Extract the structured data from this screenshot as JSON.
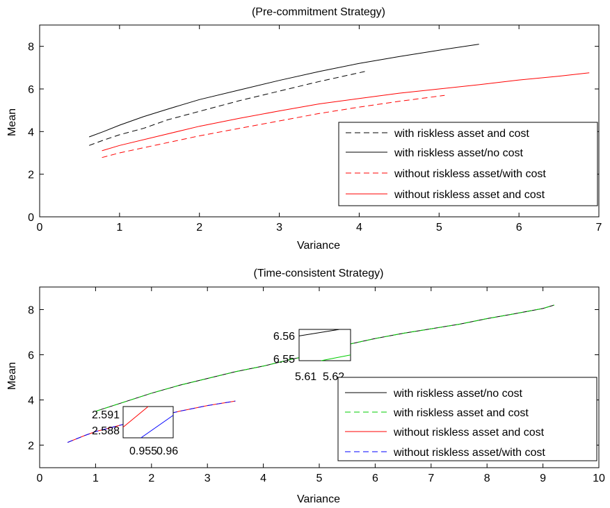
{
  "chart_data": [
    {
      "type": "line",
      "title": "(Pre-commitment Strategy)",
      "xlabel": "Variance",
      "ylabel": "Mean",
      "xlim": [
        0,
        7
      ],
      "ylim": [
        0,
        9
      ],
      "xticks": [
        0,
        1,
        2,
        3,
        4,
        5,
        6,
        7
      ],
      "yticks": [
        0,
        2,
        4,
        6,
        8
      ],
      "grid": false,
      "legend_position": "bottom-right",
      "series": [
        {
          "name": "with riskless asset and cost",
          "color": "#000000",
          "dash": "dashed",
          "x": [
            0.62,
            0.8,
            1.0,
            1.3,
            1.6,
            2.0,
            2.5,
            3.0,
            3.5,
            4.07
          ],
          "y": [
            3.35,
            3.6,
            3.85,
            4.15,
            4.55,
            4.95,
            5.45,
            5.9,
            6.35,
            6.82
          ]
        },
        {
          "name": "with riskless asset/no cost",
          "color": "#000000",
          "dash": "solid",
          "x": [
            0.62,
            0.8,
            1.0,
            1.3,
            1.6,
            2.0,
            2.5,
            3.0,
            3.5,
            4.0,
            4.5,
            5.0,
            5.5
          ],
          "y": [
            3.75,
            4.0,
            4.3,
            4.7,
            5.05,
            5.5,
            5.95,
            6.4,
            6.82,
            7.2,
            7.52,
            7.82,
            8.1
          ]
        },
        {
          "name": "without riskless asset/with cost",
          "color": "#ff0000",
          "dash": "dashed",
          "x": [
            0.78,
            1.0,
            1.5,
            2.0,
            2.5,
            3.0,
            3.5,
            4.0,
            4.5,
            5.07
          ],
          "y": [
            2.78,
            3.0,
            3.4,
            3.8,
            4.15,
            4.5,
            4.85,
            5.15,
            5.42,
            5.7
          ]
        },
        {
          "name": "without riskless asset and cost",
          "color": "#ff0000",
          "dash": "solid",
          "x": [
            0.78,
            1.0,
            1.5,
            2.0,
            2.5,
            3.0,
            3.5,
            4.0,
            4.5,
            5.0,
            5.5,
            6.0,
            6.5,
            6.88
          ],
          "y": [
            3.1,
            3.35,
            3.8,
            4.25,
            4.62,
            4.97,
            5.3,
            5.55,
            5.8,
            6.0,
            6.2,
            6.42,
            6.6,
            6.76
          ]
        }
      ]
    },
    {
      "type": "line",
      "title": "(Time-consistent Strategy)",
      "xlabel": "Variance",
      "ylabel": "Mean",
      "xlim": [
        0,
        10
      ],
      "ylim": [
        1,
        9
      ],
      "xticks": [
        0,
        1,
        2,
        3,
        4,
        5,
        6,
        7,
        8,
        9,
        10
      ],
      "yticks": [
        2,
        4,
        6,
        8
      ],
      "grid": false,
      "legend_position": "bottom-right",
      "series": [
        {
          "name": "with riskless asset/no cost",
          "color": "#000000",
          "dash": "solid",
          "x": [
            1.0,
            1.5,
            2.0,
            2.5,
            3.0,
            3.5,
            4.0,
            4.5,
            5.0,
            5.5,
            6.0,
            6.5,
            7.0,
            7.5,
            8.0,
            8.5,
            9.0,
            9.2
          ],
          "y": [
            3.5,
            3.9,
            4.3,
            4.65,
            4.95,
            5.25,
            5.5,
            5.8,
            6.05,
            6.45,
            6.72,
            6.95,
            7.15,
            7.35,
            7.6,
            7.82,
            8.05,
            8.2
          ]
        },
        {
          "name": "with riskless asset and cost",
          "color": "#00cc00",
          "dash": "dashed",
          "x": [
            1.0,
            1.5,
            2.0,
            2.5,
            3.0,
            3.5,
            4.0,
            4.5,
            5.0,
            5.5,
            6.0,
            6.5,
            7.0,
            7.5,
            8.0,
            8.5,
            9.0,
            9.2
          ],
          "y": [
            3.5,
            3.9,
            4.3,
            4.65,
            4.95,
            5.25,
            5.5,
            5.8,
            6.05,
            6.45,
            6.72,
            6.95,
            7.15,
            7.35,
            7.6,
            7.82,
            8.05,
            8.2
          ]
        },
        {
          "name": "without riskless asset and cost",
          "color": "#ff0000",
          "dash": "solid",
          "x": [
            0.5,
            0.8,
            1.0,
            1.5,
            2.0,
            2.5,
            3.0,
            3.5
          ],
          "y": [
            2.12,
            2.42,
            2.6,
            2.92,
            3.22,
            3.5,
            3.75,
            3.95
          ]
        },
        {
          "name": "without riskless asset/with cost",
          "color": "#0000ff",
          "dash": "dashed",
          "x": [
            0.5,
            0.8,
            1.0,
            1.5,
            2.0,
            2.5,
            3.0,
            3.5
          ],
          "y": [
            2.12,
            2.42,
            2.6,
            2.92,
            3.22,
            3.5,
            3.75,
            3.95
          ]
        }
      ],
      "insets": [
        {
          "name": "inset-lower",
          "xlim": [
            0.954,
            0.961
          ],
          "ylim": [
            2.587,
            2.592
          ],
          "xtick_labels": [
            "0.955",
            "0.96"
          ],
          "ytick_labels": [
            "2.591",
            "2.588"
          ],
          "series": [
            {
              "color": "#ff0000",
              "x": [
                0.954,
                0.9575
              ],
              "y": [
                2.5887,
                2.592
              ]
            },
            {
              "color": "#0000ff",
              "x": [
                0.9565,
                0.961
              ],
              "y": [
                2.587,
                2.5906
              ]
            }
          ]
        },
        {
          "name": "inset-upper",
          "xlim": [
            5.609,
            5.623
          ],
          "ylim": [
            6.549,
            6.561
          ],
          "xtick_labels": [
            "5.61",
            "5.62"
          ],
          "ytick_labels": [
            "6.56",
            "6.55"
          ],
          "series": [
            {
              "color": "#000000",
              "x": [
                5.609,
                5.62
              ],
              "y": [
                6.5585,
                6.561
              ]
            },
            {
              "color": "#00cc00",
              "x": [
                5.615,
                5.623
              ],
              "y": [
                6.549,
                6.5512
              ]
            }
          ]
        }
      ]
    }
  ]
}
